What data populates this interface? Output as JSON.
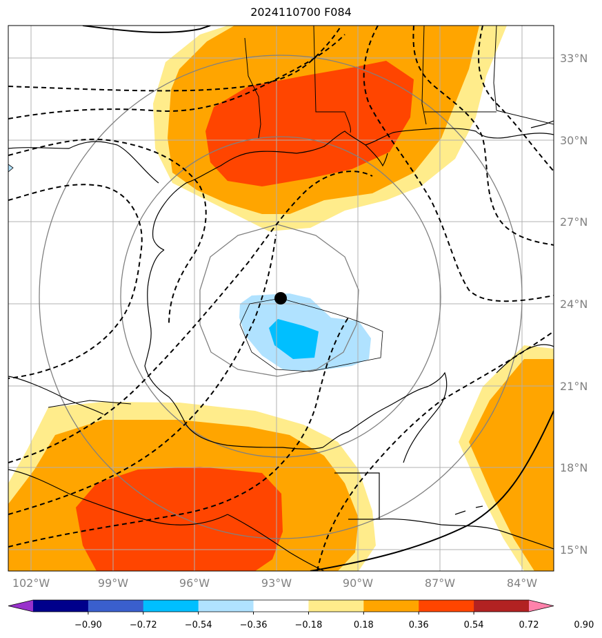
{
  "title": "2024110700 F084",
  "lat_labels": [
    "33°N",
    "30°N",
    "27°N",
    "24°N",
    "21°N",
    "18°N",
    "15°N"
  ],
  "lon_labels": [
    "102°W",
    "99°W",
    "96°W",
    "93°W",
    "90°W",
    "87°W",
    "84°W"
  ],
  "colorbar": {
    "ticks": [
      "−0.90",
      "−0.72",
      "−0.54",
      "−0.36",
      "−0.18",
      "0.18",
      "0.36",
      "0.54",
      "0.72",
      "0.90"
    ],
    "colors": [
      "#9932cc",
      "#00008b",
      "#3a5fcd",
      "#00bfff",
      "#b0e2ff",
      "#ffffff",
      "#ffec8b",
      "#ffa500",
      "#ff4500",
      "#b22222",
      "#ff82ab"
    ]
  },
  "storm_center": {
    "lat": 24.2,
    "lon": -92.9
  }
}
